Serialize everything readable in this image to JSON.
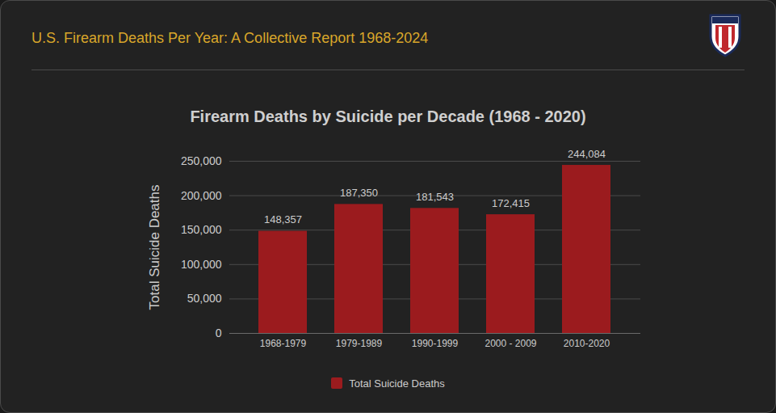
{
  "chart_data": {
    "type": "bar",
    "header": "U.S. Firearm Deaths Per Year: A Collective Report 1968-2024",
    "title": "Firearm Deaths by Suicide per Decade (1968 - 2020)",
    "y_label": "Total Suicide Deaths",
    "categories": [
      "1968-1979",
      "1979-1989",
      "1990-1999",
      "2000 - 2009",
      "2010-2020"
    ],
    "series": [
      {
        "name": "Total Suicide Deaths",
        "color": "#9b1b1e",
        "values": [
          148357,
          187350,
          181543,
          172415,
          244084
        ],
        "value_labels": [
          "148,357",
          "187,350",
          "181,543",
          "172,415",
          "244,084"
        ]
      }
    ],
    "ylim": [
      0,
      250000
    ],
    "yticks": [
      0,
      {
        "value": 50000,
        "label": "50,000"
      },
      {
        "value": 100000,
        "label": "100,000"
      },
      {
        "value": 150000,
        "label": "150,000"
      },
      {
        "value": 200000,
        "label": "200,000"
      },
      {
        "value": 250000,
        "label": "250,000"
      }
    ],
    "grid": true,
    "data_labels": true,
    "legend": "bottom"
  }
}
